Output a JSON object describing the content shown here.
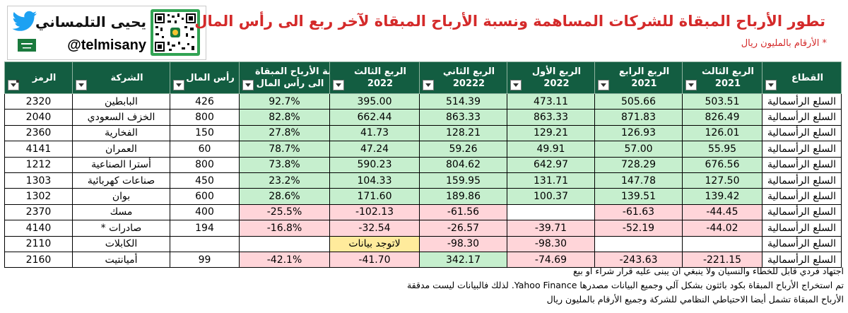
{
  "brand": {
    "name": "يحيى التلمساني",
    "handle": "@telmisany"
  },
  "title": "تطور الأرباح المبقاة للشركات المساهمة ونسبة الأرباح المبقاة لآخر ربع الى رأس المال",
  "subtitle": "* الأرقام بالمليون ريال",
  "columns": [
    {
      "key": "code",
      "label": "الرمز"
    },
    {
      "key": "company",
      "label": "الشركة"
    },
    {
      "key": "capital",
      "label": "رأس المال"
    },
    {
      "key": "ratio",
      "label_line1": "نسبة الأرباح المبقاة",
      "label_line2": "الى رأس المال"
    },
    {
      "key": "q3_2022",
      "label_line1": "الربع الثالث",
      "label_line2": "2022"
    },
    {
      "key": "q2_2022",
      "label_line1": "الربع الثاني",
      "label_line2": "20222"
    },
    {
      "key": "q1_2022",
      "label_line1": "الربع الأول",
      "label_line2": "2022"
    },
    {
      "key": "q4_2021",
      "label_line1": "الربع الرابع",
      "label_line2": "2021"
    },
    {
      "key": "q3_2021",
      "label_line1": "الربع الثالث",
      "label_line2": "2021"
    },
    {
      "key": "sector",
      "label": "القطاع"
    }
  ],
  "rows": [
    {
      "code": "2320",
      "company": "البابطين",
      "capital": "426",
      "ratio": "92.7%",
      "q3_2022": "395.00",
      "q2_2022": "514.39",
      "q1_2022": "473.11",
      "q4_2021": "505.66",
      "q3_2021": "503.51",
      "sector": "السلع الرأسمالية"
    },
    {
      "code": "2040",
      "company": "الخزف السعودي",
      "capital": "800",
      "ratio": "82.8%",
      "q3_2022": "662.44",
      "q2_2022": "863.33",
      "q1_2022": "863.33",
      "q4_2021": "871.83",
      "q3_2021": "826.49",
      "sector": "السلع الرأسمالية"
    },
    {
      "code": "2360",
      "company": "الفخارية",
      "capital": "150",
      "ratio": "27.8%",
      "q3_2022": "41.73",
      "q2_2022": "128.21",
      "q1_2022": "129.21",
      "q4_2021": "126.93",
      "q3_2021": "126.01",
      "sector": "السلع الرأسمالية"
    },
    {
      "code": "4141",
      "company": "العمران",
      "capital": "60",
      "ratio": "78.7%",
      "q3_2022": "47.24",
      "q2_2022": "59.26",
      "q1_2022": "49.91",
      "q4_2021": "57.00",
      "q3_2021": "55.95",
      "sector": "السلع الرأسمالية"
    },
    {
      "code": "1212",
      "company": "أسترا الصناعية",
      "capital": "800",
      "ratio": "73.8%",
      "q3_2022": "590.23",
      "q2_2022": "804.62",
      "q1_2022": "642.97",
      "q4_2021": "728.29",
      "q3_2021": "676.56",
      "sector": "السلع الرأسمالية"
    },
    {
      "code": "1303",
      "company": "صناعات كهربائية",
      "capital": "450",
      "ratio": "23.2%",
      "q3_2022": "104.33",
      "q2_2022": "159.95",
      "q1_2022": "131.71",
      "q4_2021": "147.78",
      "q3_2021": "127.50",
      "sector": "السلع الرأسمالية"
    },
    {
      "code": "1302",
      "company": "بوان",
      "capital": "600",
      "ratio": "28.6%",
      "q3_2022": "171.60",
      "q2_2022": "189.86",
      "q1_2022": "100.37",
      "q4_2021": "139.51",
      "q3_2021": "139.42",
      "sector": "السلع الرأسمالية"
    },
    {
      "code": "2370",
      "company": "مسك",
      "capital": "400",
      "ratio": "-25.5%",
      "q3_2022": "-102.13",
      "q2_2022": "-61.56",
      "q1_2022": "",
      "q4_2021": "-61.63",
      "q3_2021": "-44.45",
      "sector": "السلع الرأسمالية"
    },
    {
      "code": "4140",
      "company": "صادرات *",
      "capital": "194",
      "ratio": "-16.8%",
      "q3_2022": "-32.54",
      "q2_2022": "-26.57",
      "q1_2022": "-39.71",
      "q4_2021": "-52.19",
      "q3_2021": "-44.02",
      "sector": "السلع الرأسمالية"
    },
    {
      "code": "2110",
      "company": "الكابلات",
      "capital": "",
      "ratio": "",
      "q3_2022": "لاتوجد بيانات",
      "q2_2022": "-98.30",
      "q1_2022": "-98.30",
      "q4_2021": "",
      "q3_2021": "",
      "sector": "السلع الرأسمالية"
    },
    {
      "code": "2160",
      "company": "أميانتيت",
      "capital": "99",
      "ratio": "-42.1%",
      "q3_2022": "-41.70",
      "q2_2022": "342.17",
      "q1_2022": "-74.69",
      "q4_2021": "-243.63",
      "q3_2021": "-221.15",
      "sector": "السلع الرأسمالية"
    }
  ],
  "notes": [
    "اجتهاد فردي قابل للخطاء والنسيان ولا ينبغي ان يبنى عليه قرار شراء او بيع",
    "تم استخراج الأرباح المبقاة بكود بائثون بشكل آلي وجميع البيانات مصدرها Yahoo Finance. لذلك فالبيانات ليست مدققة",
    "الأرباح المبقاة تشمل أيضا الاحتياطي النظامي للشركة وجميع الأرقام بالمليون ريال"
  ],
  "colors": {
    "header_bg": "#135d41",
    "positive_fill": "#c6efce",
    "negative_fill": "#ffd5d9",
    "nodata_fill": "#ffeb9c",
    "title": "#d42a2a"
  }
}
